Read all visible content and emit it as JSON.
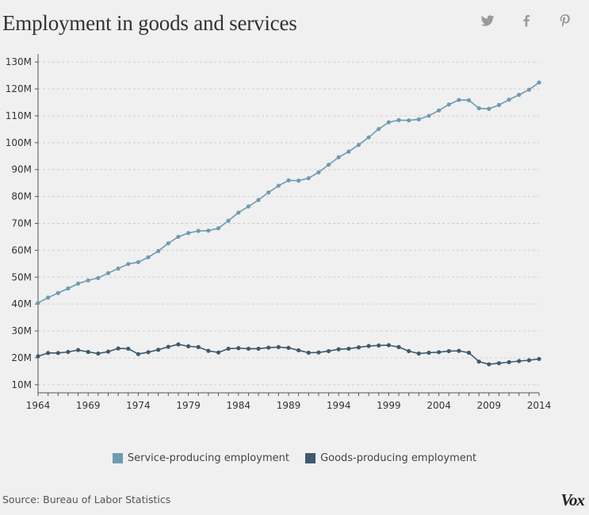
{
  "title": "Employment in goods and services",
  "share": {
    "twitter_icon": "twitter-icon",
    "facebook_icon": "facebook-icon",
    "pinterest_icon": "pinterest-icon",
    "icon_color": "#999999"
  },
  "chart_data": {
    "type": "line",
    "title": "Employment in goods and services",
    "xlabel": "",
    "ylabel": "",
    "xlim": [
      1964,
      2014
    ],
    "ylim": [
      7,
      133
    ],
    "x_ticks": [
      1964,
      1969,
      1974,
      1979,
      1984,
      1989,
      1994,
      1999,
      2004,
      2009,
      2014
    ],
    "y_ticks": [
      10,
      20,
      30,
      40,
      50,
      60,
      70,
      80,
      90,
      100,
      110,
      120,
      130
    ],
    "y_tick_labels": [
      "10M",
      "20M",
      "30M",
      "40M",
      "50M",
      "60M",
      "70M",
      "80M",
      "90M",
      "100M",
      "110M",
      "120M",
      "130M"
    ],
    "grid": "horizontal-dashed",
    "x": [
      1964,
      1965,
      1966,
      1967,
      1968,
      1969,
      1970,
      1971,
      1972,
      1973,
      1974,
      1975,
      1976,
      1977,
      1978,
      1979,
      1980,
      1981,
      1982,
      1983,
      1984,
      1985,
      1986,
      1987,
      1988,
      1989,
      1990,
      1991,
      1992,
      1993,
      1994,
      1995,
      1996,
      1997,
      1998,
      1999,
      2000,
      2001,
      2002,
      2003,
      2004,
      2005,
      2006,
      2007,
      2008,
      2009,
      2010,
      2011,
      2012,
      2013,
      2014
    ],
    "series": [
      {
        "name": "Service-producing employment",
        "color": "#6e9bb2",
        "values": [
          40.4,
          42.4,
          44.1,
          45.8,
          47.6,
          48.8,
          49.7,
          51.5,
          53.2,
          54.9,
          55.6,
          57.4,
          59.7,
          62.6,
          65.0,
          66.4,
          67.2,
          67.3,
          68.2,
          71.0,
          74.0,
          76.3,
          78.7,
          81.5,
          84.0,
          86.0,
          85.9,
          86.8,
          89.0,
          91.8,
          94.6,
          96.7,
          99.2,
          102.0,
          105.1,
          107.6,
          108.4,
          108.3,
          108.7,
          110.0,
          112.0,
          114.2,
          115.9,
          115.8,
          112.8,
          112.6,
          114.0,
          116.0,
          117.8,
          119.7,
          122.4
        ]
      },
      {
        "name": "Goods-producing employment",
        "color": "#3d5a6e",
        "values": [
          20.6,
          21.8,
          21.8,
          22.2,
          22.9,
          22.2,
          21.6,
          22.3,
          23.5,
          23.4,
          21.4,
          22.1,
          23.0,
          24.1,
          25.0,
          24.3,
          24.0,
          22.6,
          22.0,
          23.4,
          23.6,
          23.4,
          23.4,
          23.8,
          24.0,
          23.7,
          22.8,
          21.9,
          22.0,
          22.5,
          23.2,
          23.4,
          23.9,
          24.4,
          24.6,
          24.7,
          24.0,
          22.5,
          21.6,
          21.9,
          22.1,
          22.5,
          22.6,
          21.9,
          18.6,
          17.6,
          18.0,
          18.4,
          18.8,
          19.1,
          19.6
        ]
      }
    ],
    "legend": [
      "Service-producing employment",
      "Goods-producing employment"
    ],
    "legend_position": "bottom-center"
  },
  "source": {
    "label": "Source:",
    "text": "Bureau of Labor Statistics"
  },
  "logo": "Vox"
}
